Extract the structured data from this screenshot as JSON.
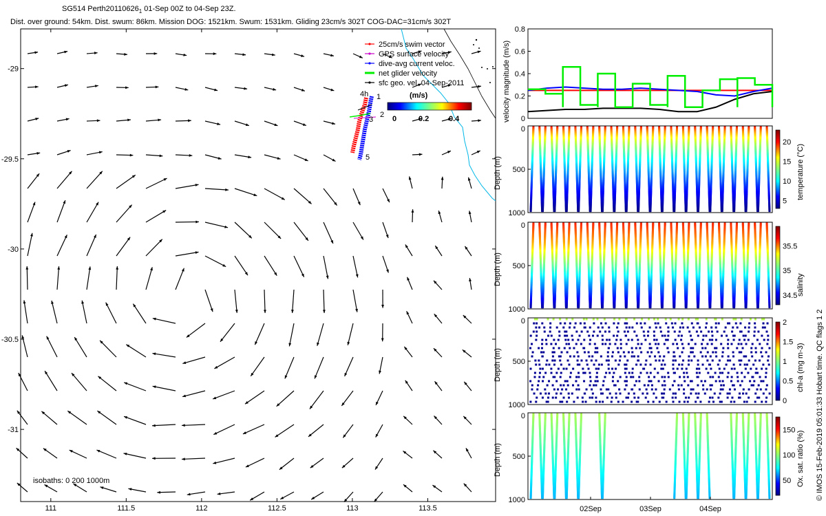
{
  "header": {
    "title": "SG514 Perth20110626",
    "title_suffix": "1",
    "date_range": "01-Sep 00Z to 04-Sep 23Z.",
    "stats": "Dist. over ground: 54km. Dist. swum: 86km. Mission DOG: 1521km. Swum: 1531km. Gliding 23cm/s 302T COG-DAC=31cm/s 302T"
  },
  "credit": "© IMOS 15-Feb-2019 05:01:33 Hobart time. QC flags 1  2",
  "colors": {
    "swim": "#ff0000",
    "gps": "#cc00cc",
    "dac": "#0000ff",
    "net": "#00ee00",
    "sfc": "#000000",
    "coast": "#00b7e8"
  },
  "chart_data": [
    {
      "type": "scatter",
      "name": "map",
      "xlim": [
        110.8,
        113.95
      ],
      "ylim": [
        -31.4,
        -28.78
      ],
      "xticks": [
        111,
        111.5,
        112,
        112.5,
        113,
        113.5
      ],
      "yticks": [
        -29,
        -29.5,
        -30,
        -30.5,
        -31
      ],
      "legend": [
        {
          "label": "25cm/s swim vector",
          "color": "#ff0000"
        },
        {
          "label": "GPS surface velocity",
          "color": "#cc00cc"
        },
        {
          "label": "dive-avg current veloc.",
          "color": "#0000ff"
        },
        {
          "label": "net glider velocity",
          "color": "#00ee00"
        },
        {
          "label": "sfc geo. vel. 04-Sep-2011",
          "color": "#000000"
        }
      ],
      "colorbar": {
        "label": "(m/s)",
        "ticks": [
          "0",
          "0.2",
          "0.4"
        ],
        "range": [
          0,
          0.5
        ]
      },
      "track_labels": [
        "4h",
        "1",
        "2",
        "5",
        "3"
      ],
      "isobaths": "isobaths: 0   200   1000m",
      "current_field": "anticyclonic eddy, surface geostrophic velocity vectors"
    },
    {
      "type": "line",
      "name": "velocity",
      "ylabel": "velocity magnitude (m/s)",
      "ylim": [
        0,
        0.8
      ],
      "yticks": [
        "0",
        "0.2",
        "0.4",
        "0.6",
        "0.8"
      ],
      "series": [
        {
          "color": "#ff0000",
          "values": [
            0.25,
            0.25
          ]
        },
        {
          "color": "#0000ff",
          "values": [
            0.25,
            0.27,
            0.28,
            0.27,
            0.26,
            0.26,
            0.27,
            0.26,
            0.25,
            0.24,
            0.21,
            0.2,
            0.24,
            0.27
          ]
        },
        {
          "color": "#000000",
          "values": [
            0.06,
            0.07,
            0.08,
            0.08,
            0.09,
            0.09,
            0.09,
            0.08,
            0.06,
            0.06,
            0.1,
            0.17,
            0.22,
            0.24
          ]
        },
        {
          "color": "#00ee00",
          "values": [
            0.26,
            0.22,
            0.46,
            0.12,
            0.4,
            0.1,
            0.31,
            0.12,
            0.38,
            0.1,
            0.25,
            0.35,
            0.36,
            0.3
          ]
        }
      ]
    },
    {
      "type": "heatmap",
      "name": "temperature",
      "ylabel": "Depth (m)",
      "clabel": "temperature (°C)",
      "yticks": [
        "0",
        "500",
        "1000"
      ],
      "cticks": [
        "5",
        "10",
        "15",
        "20"
      ],
      "crange": [
        3,
        23
      ]
    },
    {
      "type": "heatmap",
      "name": "salinity",
      "ylabel": "Depth (m)",
      "clabel": "salinity",
      "yticks": [
        "0",
        "500",
        "1000"
      ],
      "cticks": [
        "34.5",
        "35",
        "35.5"
      ],
      "crange": [
        34.3,
        35.9
      ]
    },
    {
      "type": "heatmap",
      "name": "chla",
      "ylabel": "Depth (m)",
      "clabel": "chl-a (mg m-3)",
      "yticks": [
        "0",
        "500",
        "1000"
      ],
      "cticks": [
        "0",
        "0.5",
        "1",
        "1.5",
        "2"
      ],
      "crange": [
        0,
        2
      ]
    },
    {
      "type": "heatmap",
      "name": "oxygen",
      "ylabel": "Depth (m)",
      "clabel": "Ox. sat. ratio (%)",
      "yticks": [
        "0",
        "500",
        "1000"
      ],
      "cticks": [
        "50",
        "100",
        "150"
      ],
      "crange": [
        20,
        175
      ],
      "xticks": [
        "02Sep",
        "03Sep",
        "04Sep"
      ]
    }
  ]
}
